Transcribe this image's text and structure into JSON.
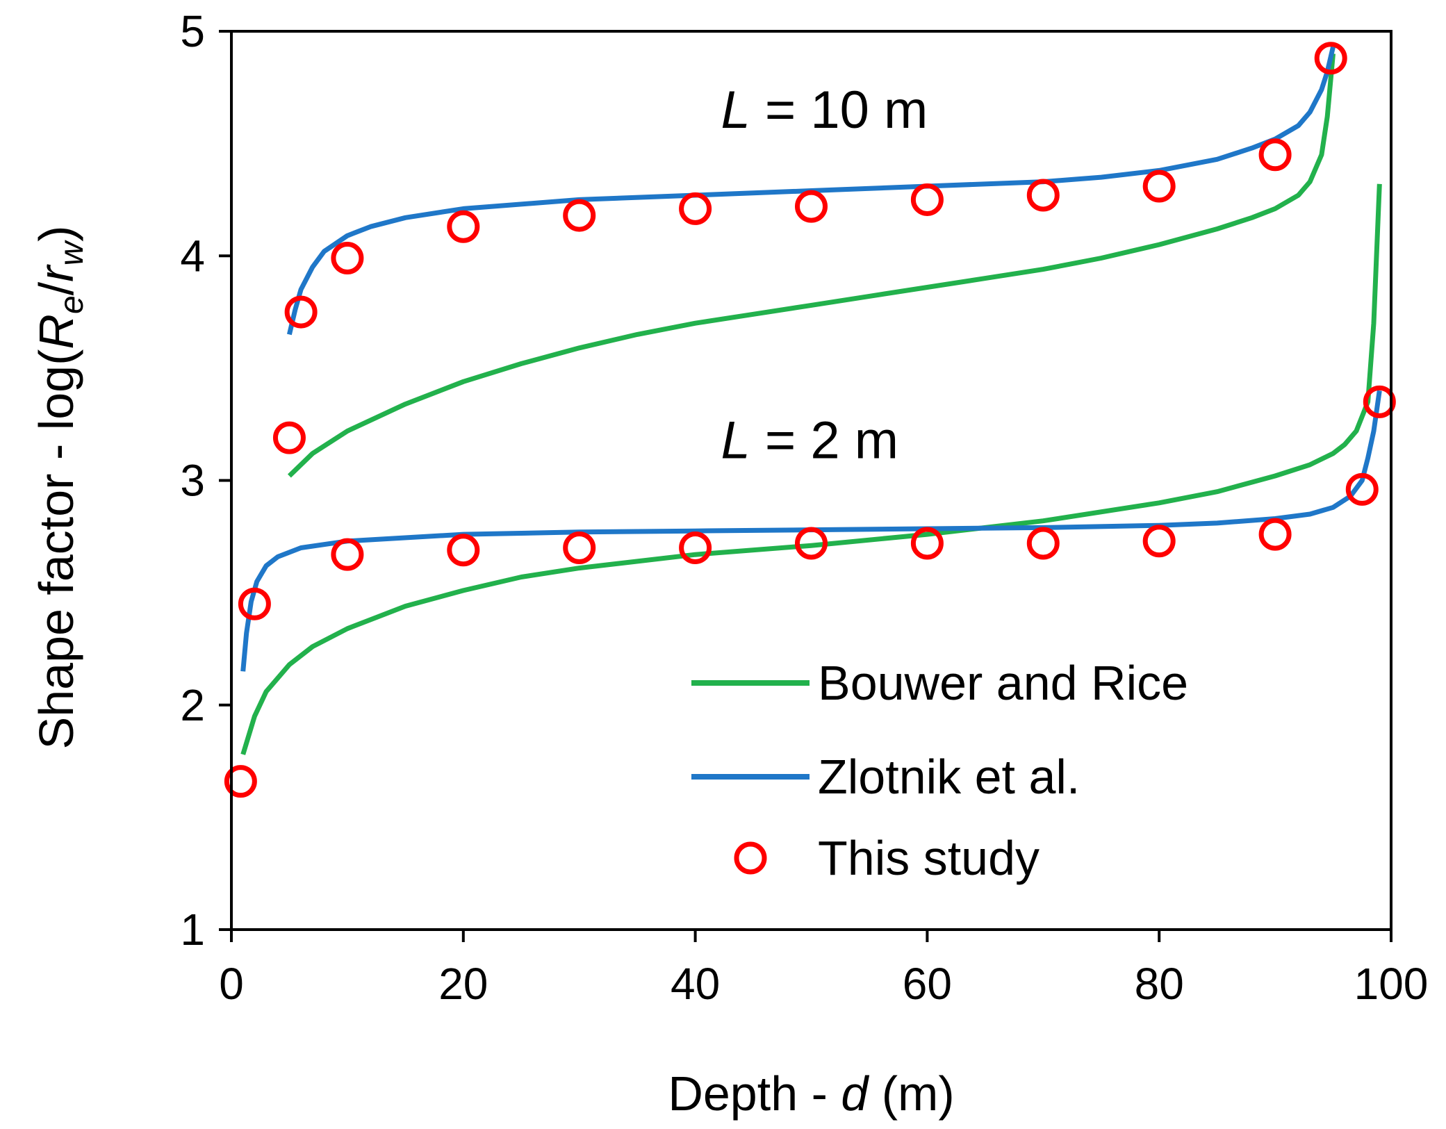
{
  "chart_data": {
    "type": "line",
    "ylabel_parts": [
      "Shape factor - log(",
      "R",
      "e",
      "/",
      "r",
      "w",
      ")"
    ],
    "xlabel_parts": [
      "Depth - ",
      "d",
      " (m)"
    ],
    "xlim": [
      0,
      100
    ],
    "ylim": [
      1,
      5
    ],
    "xticks": [
      0,
      20,
      40,
      60,
      80,
      100
    ],
    "yticks": [
      1,
      2,
      3,
      4,
      5
    ],
    "annotations": [
      {
        "italic": "L",
        "text": " = 10 m",
        "x": 50,
        "y": 4.65
      },
      {
        "italic": "L",
        "text": " = 2 m",
        "x": 50,
        "y": 3.18
      }
    ],
    "legend": [
      {
        "label": "Bouwer and Rice",
        "style": "line",
        "color": "#22b14c"
      },
      {
        "label": "Zlotnik et al.",
        "style": "line",
        "color": "#1f77c8"
      },
      {
        "label": "This study",
        "style": "circle",
        "color": "#ff0000"
      }
    ],
    "series": [
      {
        "name": "Bouwer and Rice (L = 10 m)",
        "style": "line",
        "color": "#22b14c",
        "x": [
          5,
          7,
          10,
          15,
          20,
          25,
          30,
          35,
          40,
          45,
          50,
          55,
          60,
          65,
          70,
          75,
          80,
          85,
          88,
          90,
          92,
          93,
          94,
          94.5,
          95
        ],
        "y": [
          3.02,
          3.12,
          3.22,
          3.34,
          3.44,
          3.52,
          3.59,
          3.65,
          3.7,
          3.74,
          3.78,
          3.82,
          3.86,
          3.9,
          3.94,
          3.99,
          4.05,
          4.12,
          4.17,
          4.21,
          4.27,
          4.33,
          4.45,
          4.62,
          4.9
        ]
      },
      {
        "name": "Zlotnik et al. (L = 10 m)",
        "style": "line",
        "color": "#1f77c8",
        "x": [
          5,
          5.5,
          6,
          7,
          8,
          10,
          12,
          15,
          20,
          30,
          40,
          50,
          60,
          70,
          75,
          80,
          85,
          88,
          90,
          92,
          93,
          94,
          94.5,
          95
        ],
        "y": [
          3.65,
          3.76,
          3.85,
          3.95,
          4.02,
          4.09,
          4.13,
          4.17,
          4.21,
          4.25,
          4.27,
          4.29,
          4.31,
          4.33,
          4.35,
          4.38,
          4.43,
          4.48,
          4.52,
          4.58,
          4.64,
          4.74,
          4.82,
          4.93
        ]
      },
      {
        "name": "This study (L = 10 m)",
        "style": "circle",
        "color": "#ff0000",
        "x": [
          5,
          6,
          10,
          20,
          30,
          40,
          50,
          60,
          70,
          80,
          90,
          94.8
        ],
        "y": [
          3.19,
          3.75,
          3.99,
          4.13,
          4.18,
          4.21,
          4.22,
          4.25,
          4.27,
          4.31,
          4.45,
          4.88
        ]
      },
      {
        "name": "Bouwer and Rice (L = 2 m)",
        "style": "line",
        "color": "#22b14c",
        "x": [
          1,
          2,
          3,
          5,
          7,
          10,
          15,
          20,
          25,
          30,
          40,
          50,
          60,
          70,
          80,
          85,
          90,
          93,
          95,
          96,
          97,
          98,
          98.5,
          99
        ],
        "y": [
          1.78,
          1.95,
          2.06,
          2.18,
          2.26,
          2.34,
          2.44,
          2.51,
          2.57,
          2.61,
          2.67,
          2.71,
          2.76,
          2.82,
          2.9,
          2.95,
          3.02,
          3.07,
          3.12,
          3.16,
          3.22,
          3.35,
          3.7,
          4.32
        ]
      },
      {
        "name": "Zlotnik et al. (L = 2 m)",
        "style": "line",
        "color": "#1f77c8",
        "x": [
          1,
          1.3,
          1.7,
          2.2,
          3,
          4,
          6,
          10,
          20,
          30,
          40,
          50,
          60,
          70,
          80,
          85,
          90,
          93,
          95,
          96.5,
          97.5,
          98,
          98.5,
          99
        ],
        "y": [
          2.15,
          2.32,
          2.46,
          2.55,
          2.62,
          2.66,
          2.7,
          2.73,
          2.76,
          2.77,
          2.775,
          2.78,
          2.785,
          2.79,
          2.8,
          2.81,
          2.83,
          2.85,
          2.88,
          2.93,
          3.0,
          3.1,
          3.22,
          3.4
        ]
      },
      {
        "name": "This study (L = 2 m)",
        "style": "circle",
        "color": "#ff0000",
        "x": [
          0.8,
          2,
          10,
          20,
          30,
          40,
          50,
          60,
          70,
          80,
          90,
          97.5,
          99
        ],
        "y": [
          1.66,
          2.45,
          2.67,
          2.69,
          2.7,
          2.7,
          2.72,
          2.72,
          2.72,
          2.73,
          2.76,
          2.96,
          3.35
        ]
      }
    ]
  }
}
